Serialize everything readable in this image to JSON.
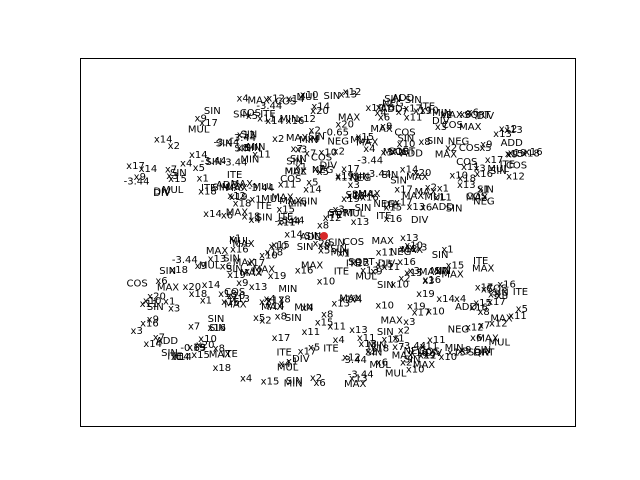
{
  "diagram": {
    "type": "expression-tree",
    "root": {
      "label": "ADD",
      "color": "#d62728"
    },
    "upper_cluster": {
      "labels": [
        "x171",
        "DIV",
        "x16",
        "ADD",
        "-3.44",
        "-3.44",
        "SIN",
        "SIN",
        "x7",
        "x2",
        "x13",
        "SIN",
        "COS",
        "SIN",
        "x4",
        "x14",
        "-3.44",
        "-3.44",
        "x12",
        "x5",
        "x3",
        "ITE",
        "x10",
        "SIN",
        "MUL",
        "MAX",
        "x2",
        "x1",
        "x20",
        "x15",
        "NEG",
        "x13",
        "SQRT",
        "ITE",
        "MAX",
        "-3.44",
        "x7",
        "x19",
        "x8",
        "MUL",
        "x9",
        "x1",
        "DIV",
        "x11",
        "x14",
        "MIN",
        "x17",
        "-3.44",
        "ITE",
        "SIN",
        "x20",
        "MAX",
        "MAX",
        "COS",
        "x2",
        "ADD",
        "x3",
        "x15",
        "SIN",
        "NEG",
        "x7",
        "MUL",
        "x18",
        "x5",
        "x6",
        "x14",
        "x12",
        "SIN",
        "DIV",
        "MAX",
        "x17",
        "x19",
        "COS",
        "x12",
        "-3.44",
        "MIN",
        "MAX",
        "x15",
        "SIN",
        "MUL",
        "x16",
        "ITE",
        "x6",
        "SIN",
        "x11",
        "x4",
        "x13",
        "x10",
        "COS",
        "x18",
        "x2",
        "x15",
        "ADD",
        "x17",
        "DIV",
        "MAX",
        "x5",
        "SIN",
        "-3.44",
        "x14",
        "-3.44",
        "x8",
        "x19",
        "NEG",
        "MAX",
        "x9",
        "x13",
        "MAX",
        "SIN",
        "COS",
        "x16",
        "SIN",
        "MAX",
        "ITE",
        "x3",
        "x12",
        "x4",
        "x11",
        "ADD",
        "x14",
        "MUL",
        "x7",
        "x18",
        "SIN",
        "MAX",
        "x10",
        "x14",
        "SIN",
        "MUL",
        "COS",
        "x18",
        "-3.44",
        "ITE",
        "x5",
        "x10",
        "MAX",
        "SIN",
        "NEG",
        "x15",
        "x17",
        "SIN",
        "COS",
        "SQRT",
        "MIN",
        "x19",
        "SIN",
        "x2",
        "x12",
        "ADD",
        "x14",
        "MAX",
        "x19",
        "MUL",
        "MAX",
        "x4",
        "MIN",
        "x11",
        "SIN",
        "x6",
        "-3.44",
        "-0.65",
        "ITE",
        "DIV",
        "x13",
        "COS",
        "x9",
        "x13",
        "SIN",
        "MAX",
        "x16",
        "MUL",
        "x14",
        "SIN",
        "x17",
        "x1",
        "x8",
        "MAX",
        "x12",
        "x4",
        "NEG",
        "x19",
        "MAX",
        "x7",
        "x3",
        "x2",
        "x9",
        "SIN",
        "ITE",
        "MAX",
        "MIN",
        "COS",
        "SIN",
        "x11",
        "x18",
        "x8",
        "ADD",
        "SIN",
        "x3",
        "x1",
        "x10",
        "MUL",
        "x4",
        "x18",
        "x20",
        "DIV",
        "ITE",
        "MIN",
        "NEG",
        "MAX",
        "x11",
        "SIN",
        "x17",
        "x13",
        "MAX",
        "-3.44",
        "COS",
        "x3",
        "MUL",
        "x5",
        "x6",
        "x12",
        "x11",
        "MAX",
        "SIN",
        "x16",
        "x8",
        "NEG",
        "SIN",
        "x3",
        "SQRT",
        "x1",
        "ITE",
        "x14",
        "x13",
        "x2",
        "x15",
        "x17"
      ]
    },
    "lower_cluster": {
      "labels": [
        "x1",
        "x15",
        "x11",
        "x16",
        "x19",
        "SIN",
        "NEG",
        "ADD",
        "MAX",
        "SIN",
        "MIN",
        "x15",
        "x14",
        "x9",
        "x17",
        "MAX",
        "SIN",
        "x13",
        "x1",
        "x11",
        "SIN",
        "x3",
        "x16",
        "x4",
        "x11",
        "MAX",
        "MAX",
        "SQRT",
        "SIN",
        "x9",
        "SIN",
        "-3.44",
        "x17",
        "-3.44",
        "MAX",
        "x2",
        "x8",
        "x17",
        "x17",
        "MUL",
        "MAX",
        "COS",
        "x3",
        "MAX",
        "x16",
        "SIN",
        "ITE",
        "MAX",
        "x9",
        "x2",
        "x4",
        "MAX",
        "SIN",
        "x13",
        "NEG",
        "DIV",
        "ITE",
        "x15",
        "MIN",
        "MUL",
        "x19",
        "x12",
        "MUL",
        "x6",
        "x14",
        "-0.65",
        "MAX",
        "x12",
        "x10",
        "x14",
        "SIN",
        "SIN",
        "ITE",
        "MIN",
        "x20",
        "x10",
        "x12",
        "MAX",
        "x16",
        "x7",
        "NEG",
        "SIN",
        "x8",
        "SIN",
        "x11",
        "x13",
        "x4",
        "x18",
        "-3.44",
        "x13",
        "x15",
        "x3",
        "x10",
        "x19",
        "x12",
        "SIN",
        "MAX",
        "x5",
        "x18",
        "MIN",
        "x4",
        "x15",
        "x17",
        "x10",
        "x19",
        "SIN",
        "x1",
        "x15",
        "x6",
        "DIV",
        "x18",
        "x16",
        "x14",
        "ADD",
        "x9",
        "MAX",
        "SQRT",
        "x8",
        "x3",
        "x20",
        "x10",
        "MUL",
        "x18",
        "x5",
        "MAX",
        "COS",
        "x13",
        "x9",
        "SIN",
        "x11",
        "MAX",
        "x4",
        "x7",
        "x2",
        "x15",
        "x1",
        "x19",
        "DIV",
        "x10",
        "ITE",
        "MUL",
        "-3.44",
        "x6",
        "MIN",
        "SIN",
        "SIN",
        "ITE",
        "x17",
        "x13",
        "SIN",
        "MAX",
        "x8",
        "x20",
        "x11",
        "x13",
        "x10",
        "MAX",
        "COS",
        "x5",
        "x4",
        "ITE",
        "SIN",
        "x14",
        "MUL",
        "MAX",
        "x16",
        "x2",
        "x10",
        "x16",
        "x14",
        "x8",
        "x11",
        "x12",
        "x6",
        "x15",
        "x18",
        "x1",
        "x8",
        "x13",
        "x5",
        "x11",
        "DIV",
        "ITE",
        "MAX",
        "SIN",
        "COS",
        "x16",
        "x12",
        "x17",
        "MIN",
        "x12",
        "x8",
        "x10",
        "x1",
        "x14",
        "x20",
        "x6",
        "x13",
        "x16",
        "x18",
        "x10",
        "x18",
        "x11",
        "x9",
        "x2",
        "x7",
        "x3",
        "x13",
        "x1",
        "x17",
        "MIN",
        "MAX",
        "x20",
        "x8",
        "x3",
        "MUL",
        "ITE",
        "x15",
        "x10",
        "x7",
        "x2",
        "x5",
        "x4",
        "COS",
        "MAX",
        "SIN",
        "x16",
        "x2",
        "MAX"
      ]
    }
  }
}
